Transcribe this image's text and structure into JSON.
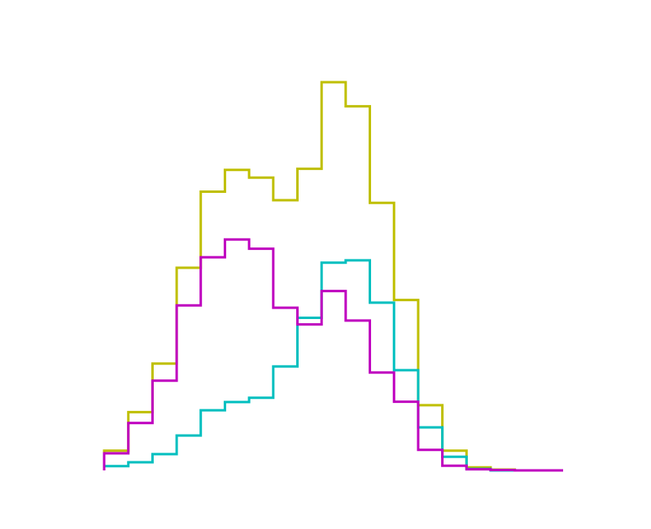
{
  "chart_data": {
    "type": "step-histogram",
    "title": "",
    "xlabel": "",
    "ylabel": "",
    "axes_visible": false,
    "grid": false,
    "legend": "none",
    "bin_edges": [
      0,
      1,
      2,
      3,
      4,
      5,
      6,
      7,
      8,
      9,
      10,
      11,
      12,
      13,
      14,
      15,
      16,
      17,
      18,
      19
    ],
    "ylim": [
      0,
      100
    ],
    "series": [
      {
        "color": "#bfbf00",
        "values": [
          5.1,
          15.0,
          27.5,
          52.2,
          71.8,
          77.4,
          75.4,
          69.6,
          77.7,
          100.0,
          93.8,
          68.9,
          43.9,
          16.8,
          5.1,
          0.8,
          0.2,
          0.0,
          0.0
        ]
      },
      {
        "color": "#00bfbf",
        "values": [
          1.1,
          2.1,
          4.2,
          9.0,
          15.5,
          17.6,
          18.7,
          26.8,
          39.3,
          53.5,
          54.1,
          43.2,
          25.8,
          11.1,
          3.5,
          0.4,
          0.0,
          0.0,
          0.0
        ]
      },
      {
        "color": "#bf00bf",
        "values": [
          4.4,
          12.2,
          23.1,
          42.5,
          54.9,
          59.5,
          57.1,
          41.9,
          37.6,
          46.2,
          38.6,
          25.2,
          17.7,
          5.3,
          1.2,
          0.3,
          0.1,
          0.0,
          0.0
        ]
      }
    ]
  }
}
